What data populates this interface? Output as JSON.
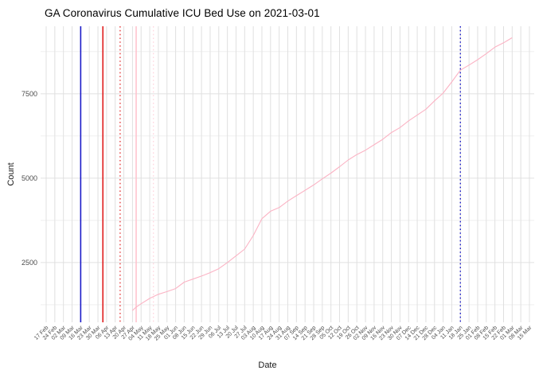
{
  "chart": {
    "title": "GA Coronavirus Cumulative ICU Bed Use on 2021-03-01",
    "xlabel": "Date",
    "ylabel": "Count"
  },
  "chart_data": {
    "type": "line",
    "title": "GA Coronavirus Cumulative ICU Bed Use on 2021-03-01",
    "xlabel": "Date",
    "ylabel": "Count",
    "grid": "on",
    "legend": "none",
    "x_axis": {
      "start_date": "2020-02-17",
      "end_date": "2021-03-15",
      "tick_interval_days": 7,
      "tick_labels": [
        "17 Feb",
        "24 Feb",
        "02 Mar",
        "09 Mar",
        "16 Mar",
        "23 Mar",
        "30 Mar",
        "06 Apr",
        "13 Apr",
        "20 Apr",
        "27 Apr",
        "04 May",
        "11 May",
        "18 May",
        "25 May",
        "01 Jun",
        "08 Jun",
        "15 Jun",
        "22 Jun",
        "29 Jun",
        "06 Jul",
        "13 Jul",
        "20 Jul",
        "27 Jul",
        "03 Aug",
        "10 Aug",
        "17 Aug",
        "24 Aug",
        "31 Aug",
        "07 Sep",
        "14 Sep",
        "21 Sep",
        "28 Sep",
        "05 Oct",
        "12 Oct",
        "19 Oct",
        "26 Oct",
        "02 Nov",
        "09 Nov",
        "16 Nov",
        "23 Nov",
        "30 Nov",
        "07 Dec",
        "14 Dec",
        "21 Dec",
        "28 Dec",
        "04 Jan",
        "11 Jan",
        "18 Jan",
        "25 Jan",
        "01 Feb",
        "08 Feb",
        "15 Feb",
        "22 Feb",
        "01 Mar",
        "08 Mar",
        "15 Mar"
      ]
    },
    "y_axis": {
      "major_ticks": [
        2500,
        5000,
        7500
      ],
      "minor_ticks": [
        1250,
        3750,
        6250,
        8750
      ],
      "range": [
        730,
        9500
      ]
    },
    "series": [
      {
        "name": "cumulative-icu-bed-use",
        "color": "#FBB3C4",
        "points": [
          [
            "2020-04-27",
            1080
          ],
          [
            "2020-04-30",
            1180
          ],
          [
            "2020-05-04",
            1280
          ],
          [
            "2020-05-11",
            1440
          ],
          [
            "2020-05-18",
            1560
          ],
          [
            "2020-05-25",
            1640
          ],
          [
            "2020-06-01",
            1730
          ],
          [
            "2020-06-08",
            1920
          ],
          [
            "2020-06-15",
            2010
          ],
          [
            "2020-06-22",
            2100
          ],
          [
            "2020-06-29",
            2200
          ],
          [
            "2020-07-06",
            2320
          ],
          [
            "2020-07-13",
            2500
          ],
          [
            "2020-07-20",
            2700
          ],
          [
            "2020-07-27",
            2900
          ],
          [
            "2020-08-03",
            3300
          ],
          [
            "2020-08-10",
            3800
          ],
          [
            "2020-08-17",
            4020
          ],
          [
            "2020-08-24",
            4130
          ],
          [
            "2020-08-31",
            4320
          ],
          [
            "2020-09-07",
            4480
          ],
          [
            "2020-09-14",
            4640
          ],
          [
            "2020-09-21",
            4800
          ],
          [
            "2020-09-28",
            4980
          ],
          [
            "2020-10-05",
            5150
          ],
          [
            "2020-10-12",
            5340
          ],
          [
            "2020-10-19",
            5540
          ],
          [
            "2020-10-26",
            5700
          ],
          [
            "2020-11-02",
            5830
          ],
          [
            "2020-11-09",
            5990
          ],
          [
            "2020-11-16",
            6150
          ],
          [
            "2020-11-23",
            6350
          ],
          [
            "2020-11-30",
            6500
          ],
          [
            "2020-12-07",
            6700
          ],
          [
            "2020-12-14",
            6870
          ],
          [
            "2020-12-21",
            7040
          ],
          [
            "2020-12-28",
            7290
          ],
          [
            "2021-01-04",
            7520
          ],
          [
            "2021-01-11",
            7850
          ],
          [
            "2021-01-18",
            8200
          ],
          [
            "2021-01-25",
            8350
          ],
          [
            "2021-02-01",
            8510
          ],
          [
            "2021-02-08",
            8690
          ],
          [
            "2021-02-15",
            8880
          ],
          [
            "2021-02-22",
            9010
          ],
          [
            "2021-03-01",
            9160
          ]
        ]
      }
    ],
    "vlines": [
      {
        "name": "navy-solid-event-line",
        "date": "2020-03-16",
        "color": "#1A1AC8",
        "style": "solid",
        "width": 1.6
      },
      {
        "name": "red-solid-event-line",
        "date": "2020-04-03",
        "color": "#E02020",
        "style": "solid",
        "width": 1.6
      },
      {
        "name": "red-dotted-event-line",
        "date": "2020-04-17",
        "color": "#E02020",
        "style": "dotted",
        "width": 1.2
      },
      {
        "name": "pink-solid-event-line",
        "date": "2020-04-30",
        "color": "#FFC0CB",
        "style": "solid",
        "width": 1.5
      },
      {
        "name": "pink-dotted-event-line",
        "date": "2020-05-14",
        "color": "#FFD2DB",
        "style": "dotted",
        "width": 1.2
      },
      {
        "name": "navy-dotted-event-line",
        "date": "2021-01-18",
        "color": "#1A1AC8",
        "style": "dotted",
        "width": 1.4
      }
    ],
    "colors": {
      "line": "#FBB3C4",
      "grid_major": "#E0E0E0",
      "grid_minor": "#EDEDED",
      "axis_text": "#4D4D4D",
      "title": "#000000",
      "background": "#FFFFFF"
    }
  }
}
